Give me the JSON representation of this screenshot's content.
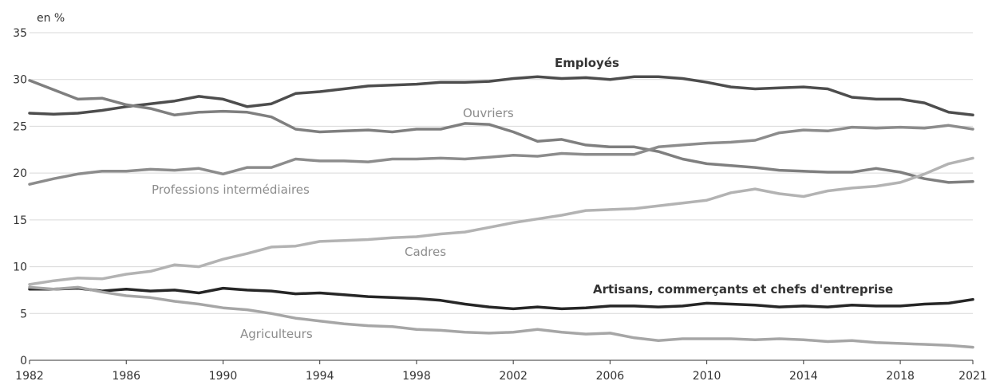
{
  "chart_data": {
    "type": "line",
    "unit_label": "en %",
    "ylim": [
      0,
      35
    ],
    "yticks": [
      0,
      5,
      10,
      15,
      20,
      25,
      30,
      35
    ],
    "xlim": [
      1982,
      2021
    ],
    "xticks": [
      1982,
      1986,
      1990,
      1994,
      1998,
      2002,
      2006,
      2010,
      2014,
      2018,
      2021
    ],
    "grid": true,
    "years": [
      1982,
      1983,
      1984,
      1985,
      1986,
      1987,
      1988,
      1989,
      1990,
      1991,
      1992,
      1993,
      1994,
      1995,
      1996,
      1997,
      1998,
      1999,
      2000,
      2001,
      2002,
      2003,
      2004,
      2005,
      2006,
      2007,
      2008,
      2009,
      2010,
      2011,
      2012,
      2013,
      2014,
      2015,
      2016,
      2017,
      2018,
      2019,
      2020,
      2021
    ],
    "series": [
      {
        "name": "Employés",
        "color": "#4d4d4d",
        "bold": true,
        "values": [
          26.4,
          26.3,
          26.4,
          26.7,
          27.1,
          27.4,
          27.7,
          28.2,
          27.9,
          27.1,
          27.4,
          28.5,
          28.7,
          29.0,
          29.3,
          29.4,
          29.5,
          29.7,
          29.7,
          29.8,
          30.1,
          30.3,
          30.1,
          30.2,
          30.0,
          30.3,
          30.3,
          30.1,
          29.7,
          29.2,
          29.0,
          29.1,
          29.2,
          29.0,
          28.1,
          27.9,
          27.9,
          27.5,
          26.5,
          26.2
        ]
      },
      {
        "name": "Ouvriers",
        "color": "#7f7f7f",
        "bold": false,
        "values": [
          29.9,
          28.9,
          27.9,
          28.0,
          27.3,
          26.9,
          26.2,
          26.5,
          26.6,
          26.5,
          26.0,
          24.7,
          24.4,
          24.5,
          24.6,
          24.4,
          24.7,
          24.7,
          25.3,
          25.2,
          24.4,
          23.4,
          23.6,
          23.0,
          22.8,
          22.8,
          22.3,
          21.5,
          21.0,
          20.8,
          20.6,
          20.3,
          20.2,
          20.1,
          20.1,
          20.5,
          20.1,
          19.4,
          19.0,
          19.1
        ]
      },
      {
        "name": "Professions intermédiaires",
        "color": "#8c8c8c",
        "bold": false,
        "values": [
          18.8,
          19.4,
          19.9,
          20.2,
          20.2,
          20.4,
          20.3,
          20.5,
          19.9,
          20.6,
          20.6,
          21.5,
          21.3,
          21.3,
          21.2,
          21.5,
          21.5,
          21.6,
          21.5,
          21.7,
          21.9,
          21.8,
          22.1,
          22.0,
          22.0,
          22.0,
          22.8,
          23.0,
          23.2,
          23.3,
          23.5,
          24.3,
          24.6,
          24.5,
          24.9,
          24.8,
          24.9,
          24.8,
          25.1,
          24.7
        ]
      },
      {
        "name": "Cadres",
        "color": "#b3b3b3",
        "bold": false,
        "values": [
          8.1,
          8.5,
          8.8,
          8.7,
          9.2,
          9.5,
          10.2,
          10.0,
          10.8,
          11.4,
          12.1,
          12.2,
          12.7,
          12.8,
          12.9,
          13.1,
          13.2,
          13.5,
          13.7,
          14.2,
          14.7,
          15.1,
          15.5,
          16.0,
          16.1,
          16.2,
          16.5,
          16.8,
          17.1,
          17.9,
          18.3,
          17.8,
          17.5,
          18.1,
          18.4,
          18.6,
          19.0,
          19.9,
          21.0,
          21.6
        ]
      },
      {
        "name": "Artisans, commerçants et chefs d'entreprise",
        "color": "#262626",
        "bold": true,
        "values": [
          7.6,
          7.6,
          7.7,
          7.4,
          7.6,
          7.4,
          7.5,
          7.2,
          7.7,
          7.5,
          7.4,
          7.1,
          7.2,
          7.0,
          6.8,
          6.7,
          6.6,
          6.4,
          6.0,
          5.7,
          5.5,
          5.7,
          5.5,
          5.6,
          5.8,
          5.8,
          5.7,
          5.8,
          6.1,
          6.0,
          5.9,
          5.7,
          5.8,
          5.7,
          5.9,
          5.8,
          5.8,
          6.0,
          6.1,
          6.5
        ]
      },
      {
        "name": "Agriculteurs",
        "color": "#a6a6a6",
        "bold": false,
        "values": [
          7.8,
          7.6,
          7.8,
          7.3,
          6.9,
          6.7,
          6.3,
          6.0,
          5.6,
          5.4,
          5.0,
          4.5,
          4.2,
          3.9,
          3.7,
          3.6,
          3.3,
          3.2,
          3.0,
          2.9,
          3.0,
          3.3,
          3.0,
          2.8,
          2.9,
          2.4,
          2.1,
          2.3,
          2.3,
          2.3,
          2.2,
          2.3,
          2.2,
          2.0,
          2.1,
          1.9,
          1.8,
          1.7,
          1.6,
          1.4
        ]
      }
    ]
  }
}
